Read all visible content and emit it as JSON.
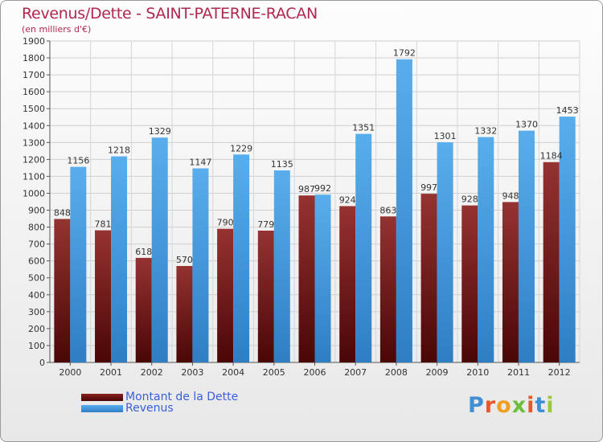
{
  "header": {
    "title": "Revenus/Dette - SAINT-PATERNE-RACAN",
    "subtitle": "(en milliers d'€)"
  },
  "chart_data": {
    "type": "bar",
    "title": "Revenus/Dette - SAINT-PATERNE-RACAN",
    "ylabel": "(en milliers d'€)",
    "xlabel": "",
    "categories": [
      "2000",
      "2001",
      "2002",
      "2003",
      "2004",
      "2005",
      "2006",
      "2007",
      "2008",
      "2009",
      "2010",
      "2011",
      "2012"
    ],
    "series": [
      {
        "name": "Montant de la Dette",
        "color": "#7a1a1a",
        "values": [
          848,
          781,
          618,
          570,
          790,
          779,
          987,
          924,
          863,
          997,
          928,
          948,
          1184
        ]
      },
      {
        "name": "Revenus",
        "color": "#3f9ee4",
        "values": [
          1156,
          1218,
          1329,
          1147,
          1229,
          1135,
          992,
          1351,
          1792,
          1301,
          1332,
          1370,
          1453
        ]
      }
    ],
    "ylim": [
      0,
      1900
    ],
    "yticks": [
      0,
      100,
      200,
      300,
      400,
      500,
      600,
      700,
      800,
      900,
      1000,
      1100,
      1200,
      1300,
      1400,
      1500,
      1600,
      1700,
      1800,
      1900
    ],
    "grid": true,
    "legend": "bottom-left"
  },
  "legend": {
    "items": [
      {
        "label": "Montant de la Dette",
        "color": "#6a0d0d"
      },
      {
        "label": "Revenus",
        "color": "#3f9ee4"
      }
    ]
  },
  "logo": {
    "letters": [
      "P",
      "r",
      "o",
      "x",
      "i",
      "t",
      "i"
    ],
    "colors": [
      "#3d8fd6",
      "#e8572a",
      "#f0a020",
      "#6bbf3a",
      "#e8572a",
      "#3d8fd6",
      "#9bc93b"
    ]
  }
}
